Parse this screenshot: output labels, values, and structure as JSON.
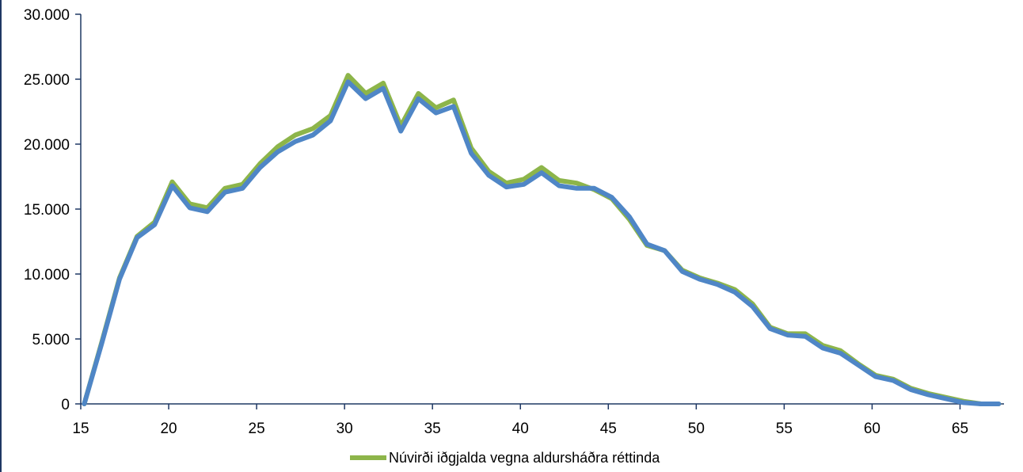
{
  "chart_data": {
    "type": "line",
    "title": "",
    "xlabel": "",
    "ylabel": "",
    "xlim": [
      15,
      67.5
    ],
    "ylim": [
      0,
      30000
    ],
    "xticks": [
      15,
      20,
      25,
      30,
      35,
      40,
      45,
      50,
      55,
      60,
      65
    ],
    "xtick_labels": [
      "15",
      "20",
      "25",
      "30",
      "35",
      "40",
      "45",
      "50",
      "55",
      "60",
      "65"
    ],
    "yticks": [
      0,
      5000,
      10000,
      15000,
      20000,
      25000,
      30000
    ],
    "ytick_labels": [
      "0",
      "5.000",
      "10.000",
      "15.000",
      "20.000",
      "25.000",
      "30.000"
    ],
    "grid": false,
    "legend_position": "bottom",
    "series": [
      {
        "name": "Núvirði iðgjalda vegna aldursháðra réttinda",
        "color": "#8DB54A",
        "x": [
          15.2,
          16.2,
          17.2,
          18.2,
          19.2,
          20.2,
          21.2,
          22.2,
          23.2,
          24.2,
          25.2,
          26.2,
          27.2,
          28.2,
          29.2,
          30.2,
          31.2,
          32.2,
          33.2,
          34.2,
          35.2,
          36.2,
          37.2,
          38.2,
          39.2,
          40.2,
          41.2,
          42.2,
          43.2,
          44.2,
          45.2,
          46.2,
          47.2,
          48.2,
          49.2,
          50.2,
          51.2,
          52.2,
          53.2,
          54.2,
          55.2,
          56.2,
          57.2,
          58.2,
          59.2,
          60.2,
          61.2,
          62.2,
          63.2,
          64.2,
          65.2,
          66.2,
          67.2
        ],
        "values": [
          0,
          4800,
          9700,
          12900,
          14000,
          17100,
          15400,
          15100,
          16600,
          16900,
          18500,
          19800,
          20700,
          21200,
          22200,
          25300,
          23900,
          24700,
          21400,
          23900,
          22800,
          23400,
          19700,
          17900,
          17000,
          17300,
          18200,
          17200,
          17000,
          16500,
          15800,
          14200,
          12200,
          11800,
          10300,
          9700,
          9300,
          8800,
          7700,
          5900,
          5400,
          5400,
          4500,
          4100,
          3100,
          2200,
          1900,
          1200,
          800,
          500,
          200,
          0,
          0
        ]
      },
      {
        "name": "",
        "color": "#4F86C6",
        "x": [
          15.2,
          16.2,
          17.2,
          18.2,
          19.2,
          20.2,
          21.2,
          22.2,
          23.2,
          24.2,
          25.2,
          26.2,
          27.2,
          28.2,
          29.2,
          30.2,
          31.2,
          32.2,
          33.2,
          34.2,
          35.2,
          36.2,
          37.2,
          38.2,
          39.2,
          40.2,
          41.2,
          42.2,
          43.2,
          44.2,
          45.2,
          46.2,
          47.2,
          48.2,
          49.2,
          50.2,
          51.2,
          52.2,
          53.2,
          54.2,
          55.2,
          56.2,
          57.2,
          58.2,
          59.2,
          60.2,
          61.2,
          62.2,
          63.2,
          64.2,
          65.2,
          66.2,
          67.2
        ],
        "values": [
          0,
          4700,
          9600,
          12800,
          13800,
          16800,
          15100,
          14800,
          16300,
          16600,
          18200,
          19400,
          20200,
          20700,
          21800,
          24800,
          23500,
          24300,
          21000,
          23500,
          22400,
          22900,
          19300,
          17600,
          16700,
          16900,
          17800,
          16800,
          16600,
          16600,
          15900,
          14400,
          12300,
          11800,
          10200,
          9600,
          9200,
          8600,
          7500,
          5800,
          5300,
          5200,
          4300,
          3900,
          3000,
          2100,
          1800,
          1100,
          700,
          400,
          100,
          0,
          0
        ]
      }
    ]
  }
}
